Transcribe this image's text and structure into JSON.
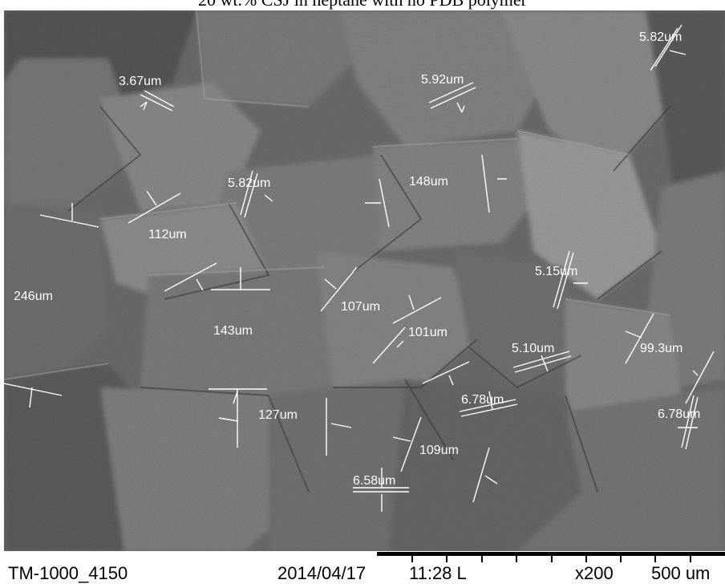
{
  "caption": "20 wt.% CSJ in heptane with no PDB polymer",
  "measurements": [
    {
      "id": "m1",
      "text": "3.67um"
    },
    {
      "id": "m2",
      "text": "5.92um"
    },
    {
      "id": "m3",
      "text": "5.82um"
    },
    {
      "id": "m4",
      "text": "5.82um"
    },
    {
      "id": "m5",
      "text": "148um"
    },
    {
      "id": "m6",
      "text": "112um"
    },
    {
      "id": "m7",
      "text": "246um"
    },
    {
      "id": "m8",
      "text": "5.15um"
    },
    {
      "id": "m9",
      "text": "107um"
    },
    {
      "id": "m10",
      "text": "143um"
    },
    {
      "id": "m11",
      "text": "101um"
    },
    {
      "id": "m12",
      "text": "5.10um"
    },
    {
      "id": "m13",
      "text": "99.3um"
    },
    {
      "id": "m14",
      "text": "6.78um"
    },
    {
      "id": "m15",
      "text": "127um"
    },
    {
      "id": "m16",
      "text": "6.78um"
    },
    {
      "id": "m17",
      "text": "109um"
    },
    {
      "id": "m18",
      "text": "6.58um"
    }
  ],
  "footer": {
    "instrument_id": "TM-1000_4150",
    "date": "2014/04/17",
    "time": "11:28 L",
    "magnification": "x200",
    "scale_label": "500 um"
  }
}
